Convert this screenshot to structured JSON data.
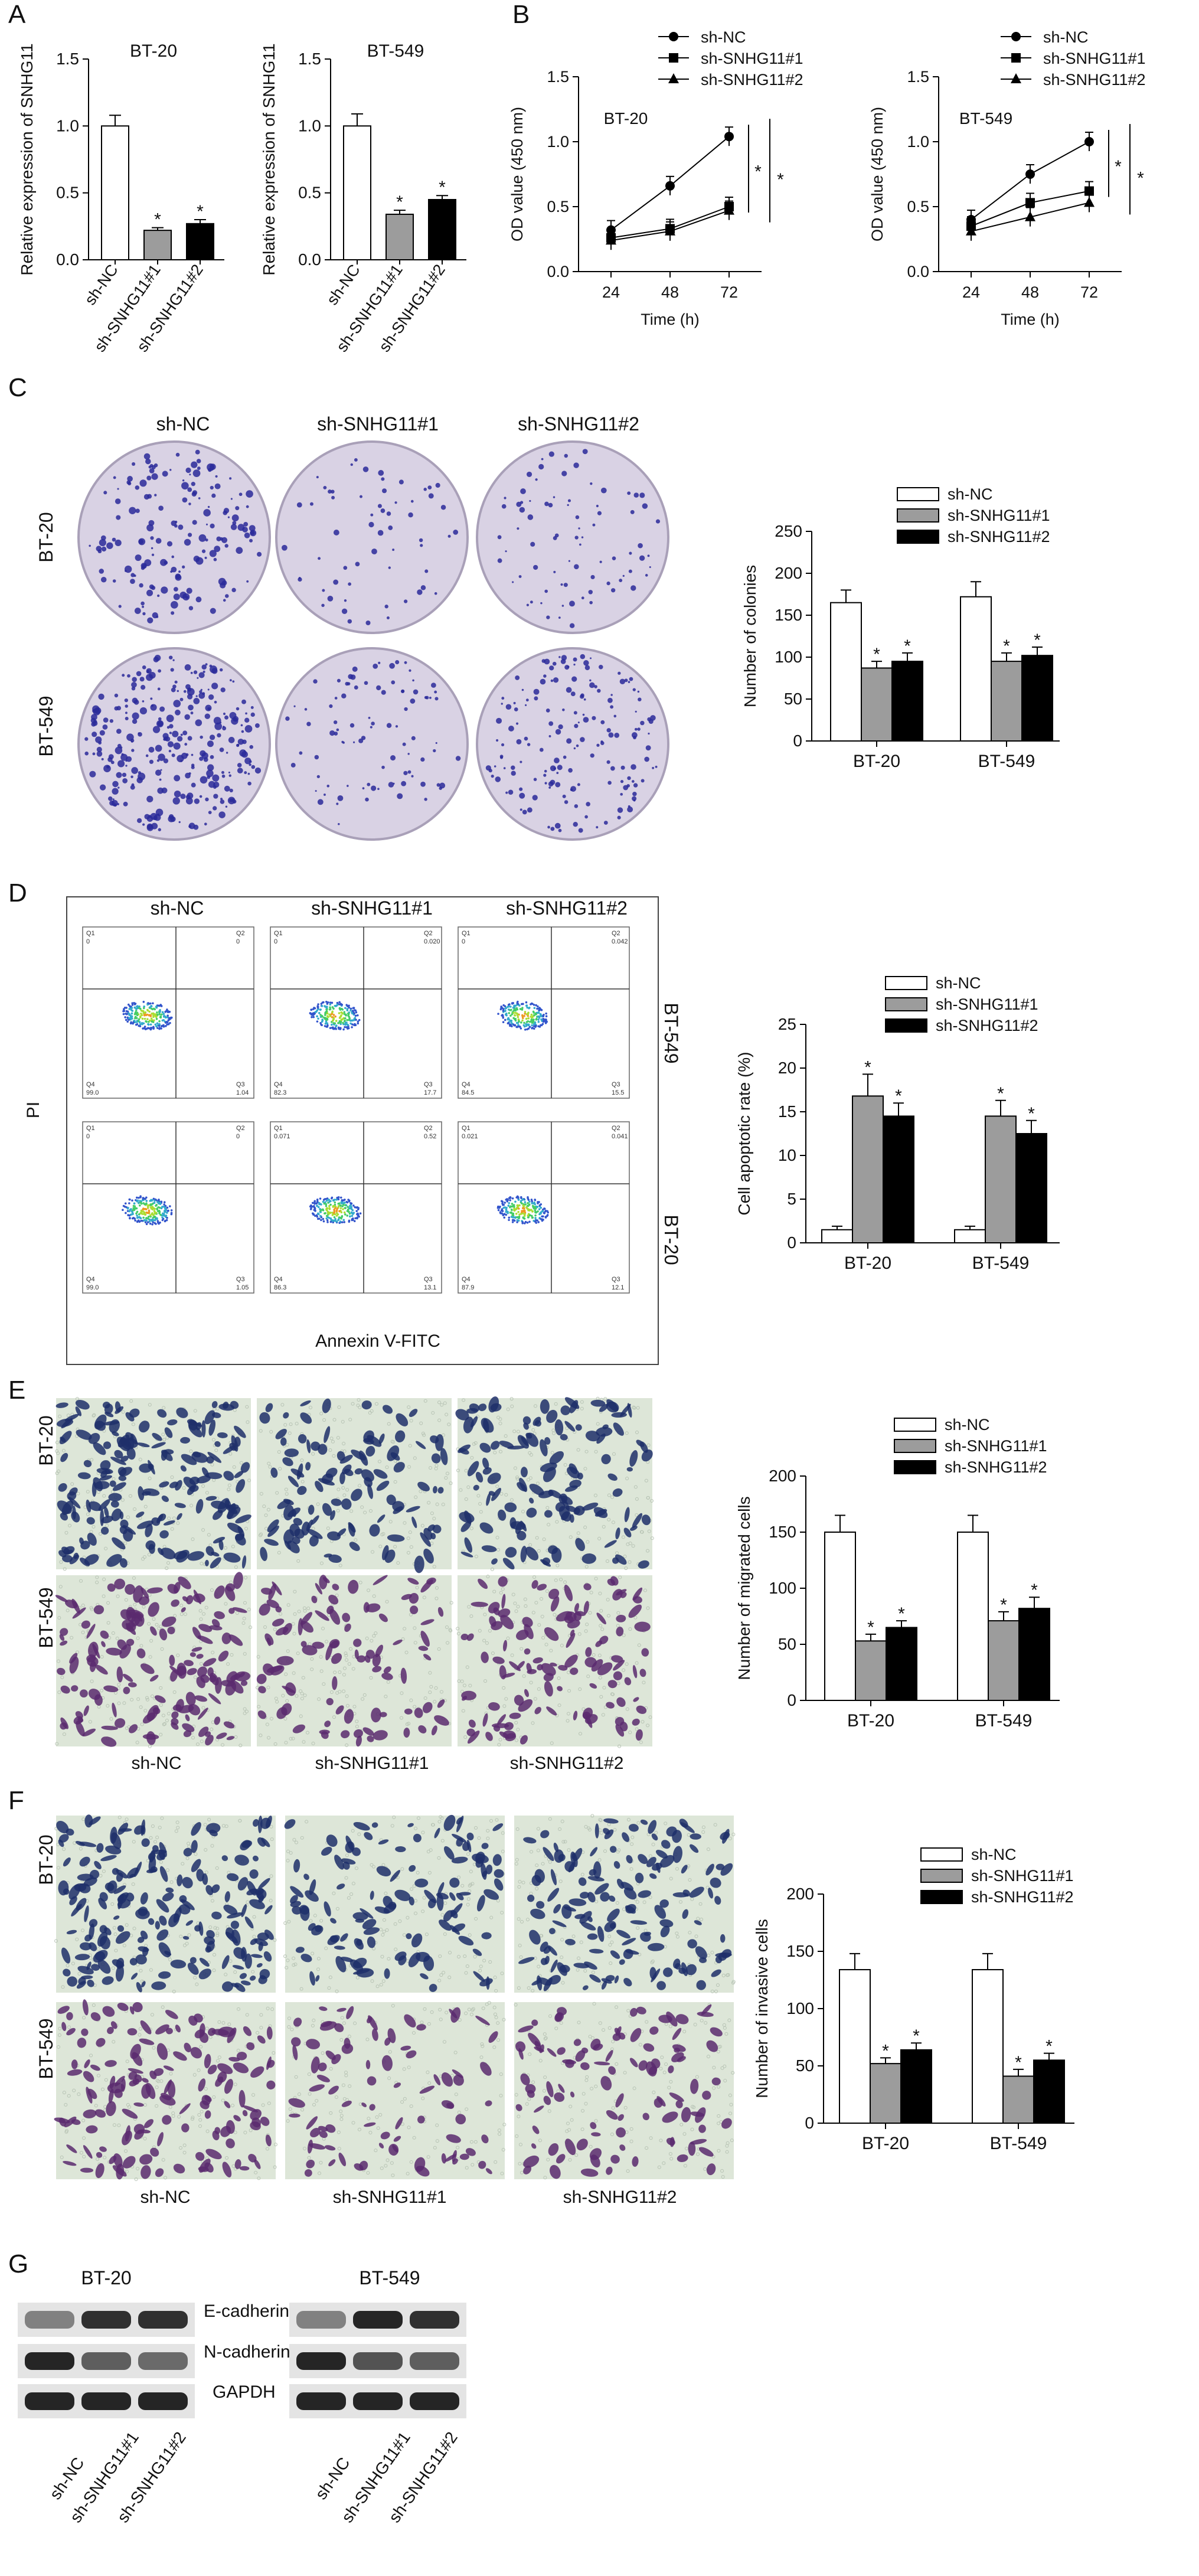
{
  "panels": {
    "A": {
      "label": "A",
      "charts": [
        {
          "title": "BT-20",
          "ylabel": "Relative expression of SNHG11",
          "categories": [
            "sh-NC",
            "sh-SNHG11#1",
            "sh-SNHG11#2"
          ],
          "values": [
            1.0,
            0.22,
            0.27
          ],
          "errors": [
            0.08,
            0.02,
            0.03
          ],
          "sig": [
            "",
            "*",
            "*"
          ],
          "ylim": [
            0,
            1.5
          ],
          "yticks": [
            "0.0",
            "0.5",
            "1.0",
            "1.5"
          ]
        },
        {
          "title": "BT-549",
          "ylabel": "Relative expression of SNHG11",
          "categories": [
            "sh-NC",
            "sh-SNHG11#1",
            "sh-SNHG11#2"
          ],
          "values": [
            1.0,
            0.34,
            0.45
          ],
          "errors": [
            0.09,
            0.03,
            0.03
          ],
          "sig": [
            "",
            "*",
            "*"
          ],
          "ylim": [
            0,
            1.5
          ],
          "yticks": [
            "0.0",
            "0.5",
            "1.0",
            "1.5"
          ]
        }
      ]
    },
    "B": {
      "label": "B",
      "legend": [
        "sh-NC",
        "sh-SNHG11#1",
        "sh-SNHG11#2"
      ],
      "charts": [
        {
          "title": "BT-20",
          "ylabel": "OD value (450 nm)",
          "xlabel": "Time (h)",
          "x": [
            "24",
            "48",
            "72"
          ],
          "yticks": [
            "0.0",
            "0.5",
            "1.0",
            "1.5"
          ],
          "ylim": [
            0,
            1.5
          ],
          "series": [
            {
              "name": "sh-NC",
              "values": [
                0.32,
                0.66,
                1.04
              ]
            },
            {
              "name": "sh-SNHG11#1",
              "values": [
                0.26,
                0.33,
                0.5
              ]
            },
            {
              "name": "sh-SNHG11#2",
              "values": [
                0.24,
                0.31,
                0.47
              ]
            }
          ],
          "sig": [
            "*",
            "*"
          ]
        },
        {
          "title": "BT-549",
          "ylabel": "OD value (450 nm)",
          "xlabel": "Time (h)",
          "x": [
            "24",
            "48",
            "72"
          ],
          "yticks": [
            "0.0",
            "0.5",
            "1.0",
            "1.5"
          ],
          "ylim": [
            0,
            1.5
          ],
          "series": [
            {
              "name": "sh-NC",
              "values": [
                0.4,
                0.75,
                1.0
              ]
            },
            {
              "name": "sh-SNHG11#1",
              "values": [
                0.35,
                0.53,
                0.62
              ]
            },
            {
              "name": "sh-SNHG11#2",
              "values": [
                0.31,
                0.42,
                0.53
              ]
            }
          ],
          "sig": [
            "*",
            "*"
          ]
        }
      ]
    },
    "C": {
      "label": "C",
      "col_labels": [
        "sh-NC",
        "sh-SNHG11#1",
        "sh-SNHG11#2"
      ],
      "row_labels": [
        "BT-20",
        "BT-549"
      ],
      "chart": {
        "ylabel": "Number of colonies",
        "groups": [
          "BT-20",
          "BT-549"
        ],
        "legend": [
          "sh-NC",
          "sh-SNHG11#1",
          "sh-SNHG11#2"
        ],
        "yticks": [
          "0",
          "50",
          "100",
          "150",
          "200",
          "250"
        ],
        "ylim": [
          0,
          250
        ],
        "series": [
          {
            "name": "sh-NC",
            "values": [
              165,
              172
            ],
            "errors": [
              15,
              18
            ]
          },
          {
            "name": "sh-SNHG11#1",
            "values": [
              87,
              95
            ],
            "errors": [
              8,
              10
            ]
          },
          {
            "name": "sh-SNHG11#2",
            "values": [
              95,
              102
            ],
            "errors": [
              10,
              10
            ]
          }
        ],
        "sig": [
          "*",
          "*"
        ]
      }
    },
    "D": {
      "label": "D",
      "col_labels": [
        "sh-NC",
        "sh-SNHG11#1",
        "sh-SNHG11#2"
      ],
      "row_labels": [
        "BT-549",
        "BT-20"
      ],
      "ylabel": "PI",
      "xlabel": "Annexin V-FITC",
      "plots": [
        {
          "q1": "Q1",
          "q2": "Q2",
          "q3": "Q3",
          "q4": "Q4",
          "v1": "0",
          "v2": "0",
          "v3": "1.04",
          "v4": "99.0"
        },
        {
          "q1": "Q1",
          "q2": "Q2",
          "q3": "Q3",
          "q4": "Q4",
          "v1": "0",
          "v2": "0.020",
          "v3": "17.7",
          "v4": "82.3"
        },
        {
          "q1": "Q1",
          "q2": "Q2",
          "q3": "Q3",
          "q4": "Q4",
          "v1": "0",
          "v2": "0.042",
          "v3": "15.5",
          "v4": "84.5"
        },
        {
          "q1": "Q1",
          "q2": "Q2",
          "q3": "Q3",
          "q4": "Q4",
          "v1": "0",
          "v2": "0",
          "v3": "1.05",
          "v4": "99.0"
        },
        {
          "q1": "Q1",
          "q2": "Q2",
          "q3": "Q3",
          "q4": "Q4",
          "v1": "0.071",
          "v2": "0.52",
          "v3": "13.1",
          "v4": "86.3"
        },
        {
          "q1": "Q1",
          "q2": "Q2",
          "q3": "Q3",
          "q4": "Q4",
          "v1": "0.021",
          "v2": "0.041",
          "v3": "12.1",
          "v4": "87.9"
        }
      ],
      "chart": {
        "ylabel": "Cell apoptotic rate (%)",
        "groups": [
          "BT-20",
          "BT-549"
        ],
        "legend": [
          "sh-NC",
          "sh-SNHG11#1",
          "sh-SNHG11#2"
        ],
        "yticks": [
          "0",
          "5",
          "10",
          "15",
          "20",
          "25"
        ],
        "ylim": [
          0,
          25
        ],
        "series": [
          {
            "name": "sh-NC",
            "values": [
              1.5,
              1.5
            ],
            "errors": [
              0.4,
              0.4
            ]
          },
          {
            "name": "sh-SNHG11#1",
            "values": [
              16.8,
              14.5
            ],
            "errors": [
              2.5,
              1.8
            ]
          },
          {
            "name": "sh-SNHG11#2",
            "values": [
              14.5,
              12.5
            ],
            "errors": [
              1.5,
              1.5
            ]
          }
        ],
        "sig": [
          "*",
          "*"
        ]
      }
    },
    "E": {
      "label": "E",
      "col_labels": [
        "sh-NC",
        "sh-SNHG11#1",
        "sh-SNHG11#2"
      ],
      "row_labels": [
        "BT-20",
        "BT-549"
      ],
      "chart": {
        "ylabel": "Number of migrated cells",
        "groups": [
          "BT-20",
          "BT-549"
        ],
        "legend": [
          "sh-NC",
          "sh-SNHG11#1",
          "sh-SNHG11#2"
        ],
        "yticks": [
          "0",
          "50",
          "100",
          "150",
          "200"
        ],
        "ylim": [
          0,
          200
        ],
        "series": [
          {
            "name": "sh-NC",
            "values": [
              150,
              150
            ],
            "errors": [
              15,
              15
            ]
          },
          {
            "name": "sh-SNHG11#1",
            "values": [
              53,
              71
            ],
            "errors": [
              6,
              8
            ]
          },
          {
            "name": "sh-SNHG11#2",
            "values": [
              65,
              82
            ],
            "errors": [
              6,
              10
            ]
          }
        ],
        "sig": [
          "*",
          "*"
        ]
      }
    },
    "F": {
      "label": "F",
      "col_labels": [
        "sh-NC",
        "sh-SNHG11#1",
        "sh-SNHG11#2"
      ],
      "row_labels": [
        "BT-20",
        "BT-549"
      ],
      "chart": {
        "ylabel": "Number of invasive cells",
        "groups": [
          "BT-20",
          "BT-549"
        ],
        "legend": [
          "sh-NC",
          "sh-SNHG11#1",
          "sh-SNHG11#2"
        ],
        "yticks": [
          "0",
          "50",
          "100",
          "150",
          "200"
        ],
        "ylim": [
          0,
          200
        ],
        "series": [
          {
            "name": "sh-NC",
            "values": [
              134,
              134
            ],
            "errors": [
              14,
              14
            ]
          },
          {
            "name": "sh-SNHG11#1",
            "values": [
              52,
              41
            ],
            "errors": [
              5,
              6
            ]
          },
          {
            "name": "sh-SNHG11#2",
            "values": [
              64,
              55
            ],
            "errors": [
              6,
              6
            ]
          }
        ],
        "sig": [
          "*",
          "*"
        ]
      }
    },
    "G": {
      "label": "G",
      "cell_lines": [
        "BT-20",
        "BT-549"
      ],
      "proteins": [
        "E-cadherin",
        "N-cadherin",
        "GAPDH"
      ],
      "lanes": [
        "sh-NC",
        "sh-SNHG11#1",
        "sh-SNHG11#2"
      ]
    }
  },
  "colors": {
    "nc": "#ffffff",
    "s1": "#9c9c9c",
    "s2": "#000000",
    "stain": "#2a2a9a",
    "dish": "#d9d2e4"
  },
  "chart_data": [
    {
      "type": "bar",
      "title": "BT-20",
      "ylabel": "Relative expression of SNHG11",
      "categories": [
        "sh-NC",
        "sh-SNHG11#1",
        "sh-SNHG11#2"
      ],
      "values": [
        1.0,
        0.22,
        0.27
      ],
      "ylim": [
        0,
        1.5
      ]
    },
    {
      "type": "bar",
      "title": "BT-549",
      "ylabel": "Relative expression of SNHG11",
      "categories": [
        "sh-NC",
        "sh-SNHG11#1",
        "sh-SNHG11#2"
      ],
      "values": [
        1.0,
        0.34,
        0.45
      ],
      "ylim": [
        0,
        1.5
      ]
    },
    {
      "type": "line",
      "title": "BT-20",
      "ylabel": "OD value (450 nm)",
      "xlabel": "Time (h)",
      "x": [
        24,
        48,
        72
      ],
      "series": [
        {
          "name": "sh-NC",
          "values": [
            0.32,
            0.66,
            1.04
          ]
        },
        {
          "name": "sh-SNHG11#1",
          "values": [
            0.26,
            0.33,
            0.5
          ]
        },
        {
          "name": "sh-SNHG11#2",
          "values": [
            0.24,
            0.31,
            0.47
          ]
        }
      ],
      "ylim": [
        0,
        1.5
      ]
    },
    {
      "type": "line",
      "title": "BT-549",
      "ylabel": "OD value (450 nm)",
      "xlabel": "Time (h)",
      "x": [
        24,
        48,
        72
      ],
      "series": [
        {
          "name": "sh-NC",
          "values": [
            0.4,
            0.75,
            1.0
          ]
        },
        {
          "name": "sh-SNHG11#1",
          "values": [
            0.35,
            0.53,
            0.62
          ]
        },
        {
          "name": "sh-SNHG11#2",
          "values": [
            0.31,
            0.42,
            0.53
          ]
        }
      ],
      "ylim": [
        0,
        1.5
      ]
    },
    {
      "type": "bar",
      "ylabel": "Number of colonies",
      "categories": [
        "BT-20",
        "BT-549"
      ],
      "series": [
        {
          "name": "sh-NC",
          "values": [
            165,
            172
          ]
        },
        {
          "name": "sh-SNHG11#1",
          "values": [
            87,
            95
          ]
        },
        {
          "name": "sh-SNHG11#2",
          "values": [
            95,
            102
          ]
        }
      ],
      "ylim": [
        0,
        250
      ]
    },
    {
      "type": "bar",
      "ylabel": "Cell apoptotic rate (%)",
      "categories": [
        "BT-20",
        "BT-549"
      ],
      "series": [
        {
          "name": "sh-NC",
          "values": [
            1.5,
            1.5
          ]
        },
        {
          "name": "sh-SNHG11#1",
          "values": [
            16.8,
            14.5
          ]
        },
        {
          "name": "sh-SNHG11#2",
          "values": [
            14.5,
            12.5
          ]
        }
      ],
      "ylim": [
        0,
        25
      ]
    },
    {
      "type": "bar",
      "ylabel": "Number of migrated cells",
      "categories": [
        "BT-20",
        "BT-549"
      ],
      "series": [
        {
          "name": "sh-NC",
          "values": [
            150,
            150
          ]
        },
        {
          "name": "sh-SNHG11#1",
          "values": [
            53,
            71
          ]
        },
        {
          "name": "sh-SNHG11#2",
          "values": [
            65,
            82
          ]
        }
      ],
      "ylim": [
        0,
        200
      ]
    },
    {
      "type": "bar",
      "ylabel": "Number of invasive cells",
      "categories": [
        "BT-20",
        "BT-549"
      ],
      "series": [
        {
          "name": "sh-NC",
          "values": [
            134,
            134
          ]
        },
        {
          "name": "sh-SNHG11#1",
          "values": [
            52,
            41
          ]
        },
        {
          "name": "sh-SNHG11#2",
          "values": [
            64,
            55
          ]
        }
      ],
      "ylim": [
        0,
        200
      ]
    }
  ]
}
